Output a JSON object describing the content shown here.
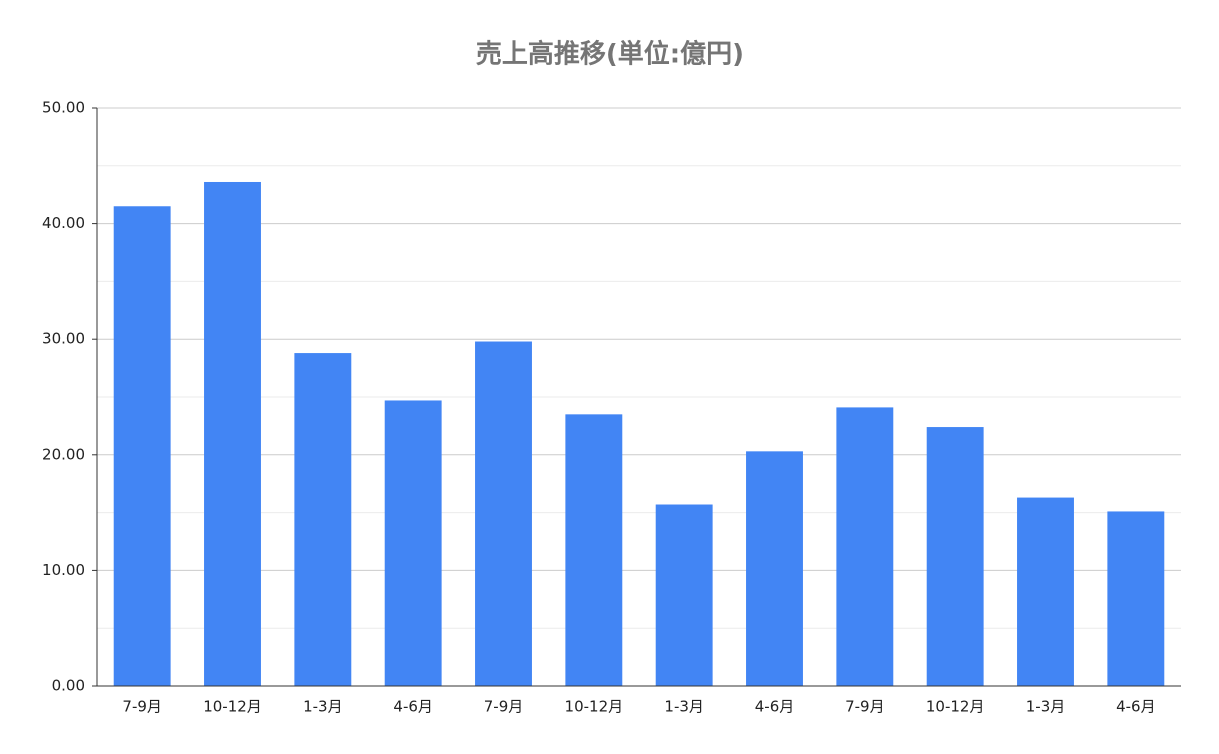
{
  "chart_data": {
    "type": "bar",
    "title": "売上高推移(単位:億円)",
    "categories": [
      "7-9月",
      "10-12月",
      "1-3月",
      "4-6月",
      "7-9月",
      "10-12月",
      "1-3月",
      "4-6月",
      "7-9月",
      "10-12月",
      "1-3月",
      "4-6月"
    ],
    "values": [
      41.5,
      43.6,
      28.8,
      24.7,
      29.8,
      23.5,
      15.7,
      20.3,
      24.1,
      22.4,
      16.3,
      15.1
    ],
    "color": "#4285f4",
    "ylim": [
      0,
      50
    ],
    "yticks": [
      {
        "value": 0,
        "label": "0.00"
      },
      {
        "value": 10,
        "label": "10.00"
      },
      {
        "value": 20,
        "label": "20.00"
      },
      {
        "value": 30,
        "label": "30.00"
      },
      {
        "value": 40,
        "label": "40.00"
      },
      {
        "value": 50,
        "label": "50.00"
      }
    ],
    "minor_yticks": [
      5,
      15,
      25,
      35,
      45
    ],
    "grid": true
  }
}
